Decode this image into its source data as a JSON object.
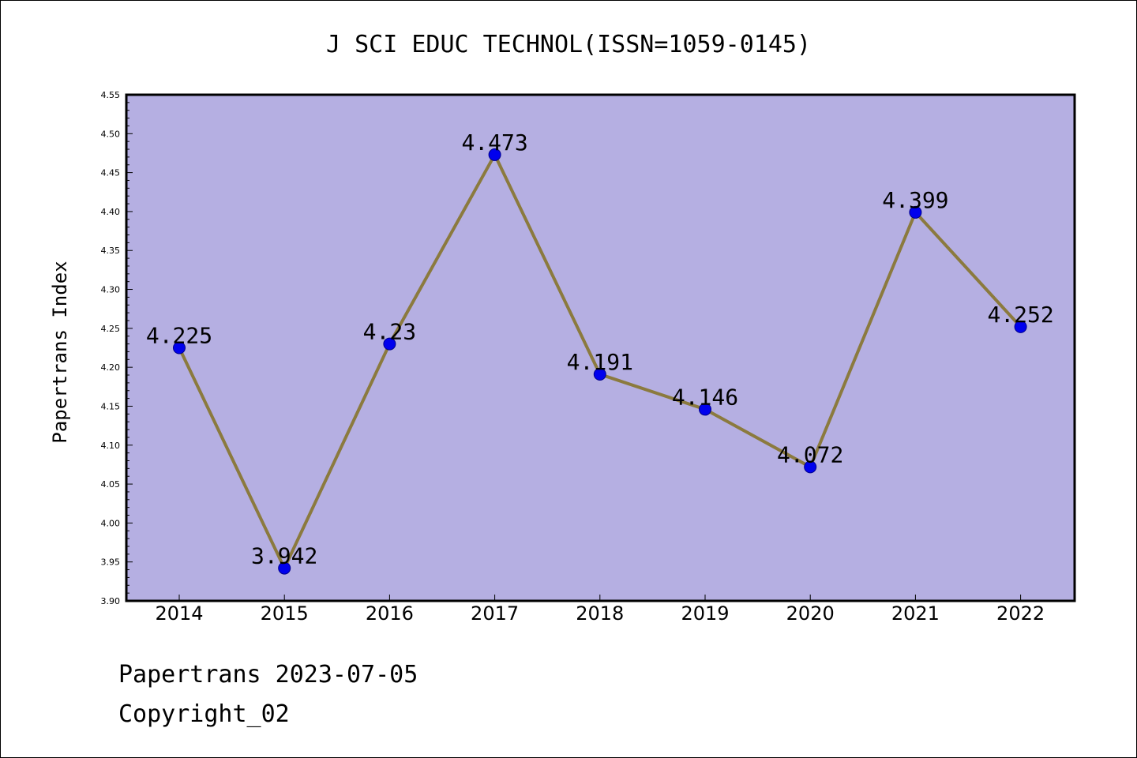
{
  "footer": {
    "line1": "Papertrans 2023-07-05",
    "line2": "Copyright_02"
  },
  "chart_data": {
    "type": "line",
    "title": "J SCI EDUC TECHNOL(ISSN=1059-0145)",
    "xlabel": "",
    "ylabel": "Papertrans Index",
    "categories": [
      "2014",
      "2015",
      "2016",
      "2017",
      "2018",
      "2019",
      "2020",
      "2021",
      "2022"
    ],
    "values": [
      4.225,
      3.942,
      4.23,
      4.473,
      4.191,
      4.146,
      4.072,
      4.399,
      4.252
    ],
    "data_labels": [
      "4.225",
      "3.942",
      "4.23",
      "4.473",
      "4.191",
      "4.146",
      "4.072",
      "4.399",
      "4.252"
    ],
    "ylim": [
      3.9,
      4.55
    ],
    "yticks": [
      "3.90",
      "3.95",
      "4.00",
      "4.05",
      "4.10",
      "4.15",
      "4.20",
      "4.25",
      "4.30",
      "4.35",
      "4.40",
      "4.45",
      "4.50",
      "4.55"
    ],
    "grid": false,
    "colors": {
      "plot_bg": "#b5afe2",
      "line": "#8b7a3e",
      "marker": "#0000ee",
      "marker_edge": "#00008b"
    }
  }
}
